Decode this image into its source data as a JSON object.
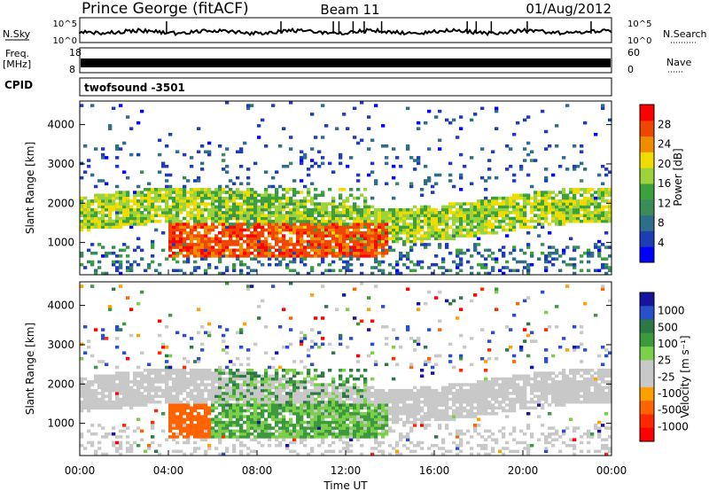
{
  "header": {
    "station": "Prince George (fitACF)",
    "beam": "Beam 11",
    "date": "01/Aug/2012"
  },
  "top_panels": {
    "nsky_label": "N.Sky",
    "nsky_ticks": [
      "10^5",
      "10^0"
    ],
    "nsearch_label": "N.Search",
    "nsearch_ticks": [
      "10^5",
      "10^0"
    ],
    "freq_label_1": "Freq.",
    "freq_label_2": "[MHz]",
    "freq_ticks": [
      "18",
      "8"
    ],
    "nave_label": "Nave",
    "nave_ticks": [
      "60",
      "0"
    ],
    "cpid_label": "CPID",
    "cpid_value": "twofsound -3501"
  },
  "colors": {
    "power": [
      "#0000ff",
      "#1e3cb4",
      "#2f6e8a",
      "#3c8c5a",
      "#3ca03c",
      "#9cd23c",
      "#f0dc00",
      "#f08c00",
      "#f04600",
      "#ff0000"
    ],
    "velocity": [
      "#1414a0",
      "#2850c8",
      "#2e7848",
      "#3c9a3c",
      "#7ccf4a",
      "#c8c8c8",
      "#c8c8c8",
      "#ffa000",
      "#ff6400",
      "#ff2800",
      "#ff0000"
    ]
  },
  "chart_data": [
    {
      "type": "heatmap",
      "name": "power",
      "xlabel": "",
      "ylabel": "Slant Range [km]",
      "x_range_hours": [
        0,
        24
      ],
      "ylim": [
        180,
        4600
      ],
      "yticks": [
        1000,
        2000,
        3000,
        4000
      ],
      "colorbar_label": "Power [dB]",
      "colorbar_ticks": [
        4,
        8,
        12,
        16,
        20,
        24,
        28
      ],
      "colorbar_range": [
        0,
        32
      ]
    },
    {
      "type": "heatmap",
      "name": "velocity",
      "xlabel": "Time UT",
      "ylabel": "Slant Range [km]",
      "x_range_hours": [
        0,
        24
      ],
      "xtick_labels": [
        "00:00",
        "04:00",
        "08:00",
        "12:00",
        "16:00",
        "20:00",
        "00:00"
      ],
      "ylim": [
        180,
        4600
      ],
      "yticks": [
        1000,
        2000,
        3000,
        4000
      ],
      "colorbar_label": "Velocity [m s⁻¹]",
      "colorbar_ticks": [
        "1000",
        "500",
        "100",
        "25",
        "-25",
        "-100",
        "-500",
        "-1000"
      ]
    }
  ]
}
